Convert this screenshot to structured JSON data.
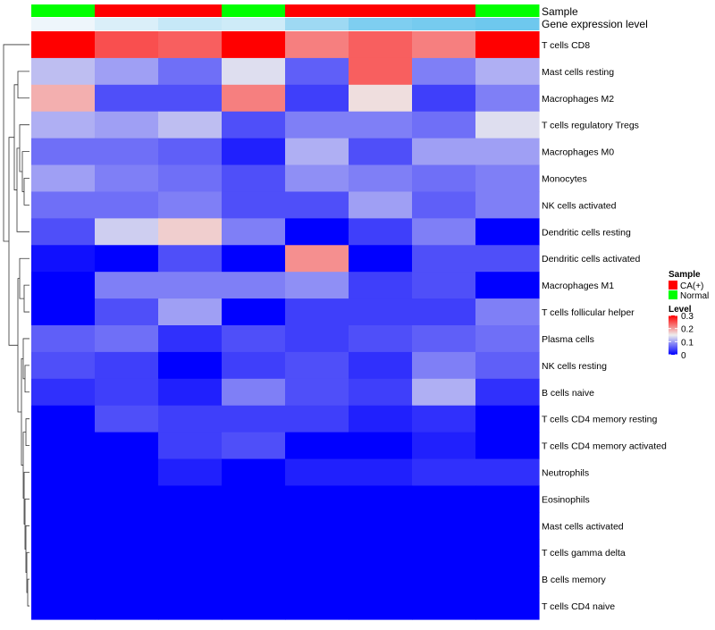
{
  "chart_data": {
    "type": "heatmap",
    "title": "",
    "n_samples": 8,
    "annotation_rows": [
      {
        "name": "Sample",
        "values": [
          "Normal",
          "CA(+)",
          "CA(+)",
          "Normal",
          "CA(+)",
          "CA(+)",
          "CA(+)",
          "Normal"
        ]
      },
      {
        "name": "Gene expression level",
        "values": [
          0.0,
          0.05,
          0.1,
          0.08,
          0.2,
          0.28,
          0.3,
          0.32
        ]
      }
    ],
    "rows": [
      "T cells CD8",
      "Mast cells resting",
      "Macrophages M2",
      "T cells regulatory  Tregs",
      "Macrophages M0",
      "Monocytes",
      "NK cells activated",
      "Dendritic cells resting",
      "Dendritic cells activated",
      "Macrophages M1",
      "T cells follicular helper",
      "Plasma cells",
      "NK cells resting",
      "B cells naive",
      "T cells CD4 memory resting",
      "T cells CD4 memory activated",
      "Neutrophils",
      "Eosinophils",
      "Mast cells activated",
      "T cells gamma delta",
      "B cells memory",
      "T cells CD4 naive"
    ],
    "values": [
      [
        0.3,
        0.25,
        0.24,
        0.3,
        0.22,
        0.24,
        0.22,
        0.3
      ],
      [
        0.12,
        0.1,
        0.07,
        0.14,
        0.06,
        0.24,
        0.08,
        0.11
      ],
      [
        0.19,
        0.05,
        0.05,
        0.22,
        0.04,
        0.16,
        0.04,
        0.08
      ],
      [
        0.11,
        0.1,
        0.12,
        0.05,
        0.08,
        0.08,
        0.07,
        0.14
      ],
      [
        0.07,
        0.07,
        0.06,
        0.02,
        0.11,
        0.05,
        0.1,
        0.1
      ],
      [
        0.1,
        0.08,
        0.07,
        0.05,
        0.09,
        0.08,
        0.07,
        0.08
      ],
      [
        0.07,
        0.07,
        0.08,
        0.05,
        0.05,
        0.1,
        0.06,
        0.08
      ],
      [
        0.05,
        0.13,
        0.17,
        0.08,
        0.0,
        0.04,
        0.08,
        0.0
      ],
      [
        0.01,
        0.0,
        0.05,
        0.0,
        0.21,
        0.0,
        0.05,
        0.05
      ],
      [
        0.0,
        0.08,
        0.08,
        0.08,
        0.09,
        0.04,
        0.05,
        0.0
      ],
      [
        0.0,
        0.05,
        0.1,
        0.0,
        0.04,
        0.04,
        0.04,
        0.08
      ],
      [
        0.06,
        0.07,
        0.03,
        0.05,
        0.04,
        0.05,
        0.06,
        0.07
      ],
      [
        0.05,
        0.04,
        0.0,
        0.04,
        0.05,
        0.03,
        0.08,
        0.06
      ],
      [
        0.03,
        0.04,
        0.02,
        0.08,
        0.05,
        0.04,
        0.11,
        0.03
      ],
      [
        0.0,
        0.05,
        0.04,
        0.04,
        0.04,
        0.02,
        0.03,
        0.0
      ],
      [
        0.0,
        0.0,
        0.04,
        0.05,
        0.0,
        0.0,
        0.02,
        0.0
      ],
      [
        0.0,
        0.0,
        0.02,
        0.0,
        0.02,
        0.02,
        0.03,
        0.03
      ],
      [
        0.0,
        0.0,
        0.0,
        0.0,
        0.0,
        0.0,
        0.0,
        0.0
      ],
      [
        0.0,
        0.0,
        0.0,
        0.0,
        0.0,
        0.0,
        0.0,
        0.0
      ],
      [
        0.0,
        0.0,
        0.0,
        0.0,
        0.0,
        0.0,
        0.0,
        0.0
      ],
      [
        0.0,
        0.0,
        0.0,
        0.0,
        0.0,
        0.0,
        0.0,
        0.0
      ],
      [
        0.0,
        0.0,
        0.0,
        0.0,
        0.0,
        0.0,
        0.0,
        0.0
      ]
    ],
    "color_scale": {
      "min": 0,
      "max": 0.3,
      "mid": 0.15,
      "low_color": "#0000ff",
      "mid_color": "#eeeeee",
      "high_color": "#ff0000"
    },
    "legend_sample": {
      "title": "Sample",
      "items": [
        {
          "label": "CA(+)",
          "color": "#ff0000"
        },
        {
          "label": "Normal",
          "color": "#00ff00"
        }
      ]
    },
    "legend_level": {
      "title": "Level",
      "ticks": [
        "0.3",
        "0.2",
        "0.1",
        "0"
      ],
      "tick_values": [
        0.3,
        0.2,
        0.1,
        0
      ]
    },
    "annotation_colors": {
      "gene_low": "#eef6fb",
      "gene_high": "#6ec8ee"
    },
    "dendrogram": "rows"
  }
}
